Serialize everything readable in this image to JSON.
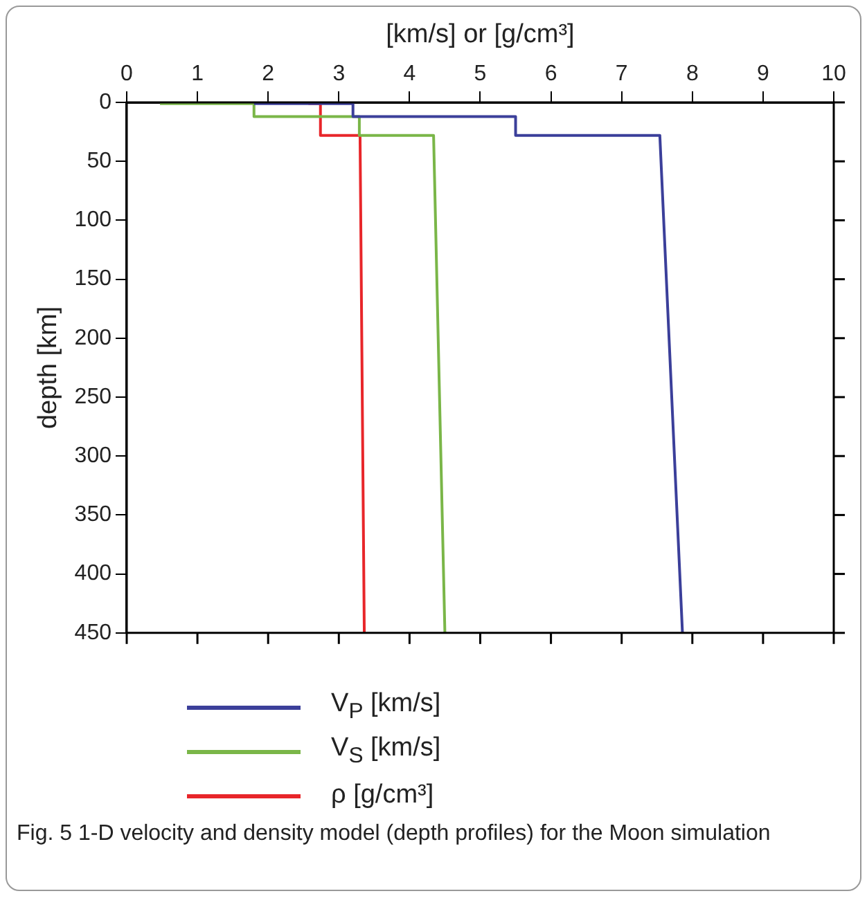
{
  "chart_data": {
    "type": "line",
    "xlabel": "[km/s] or [g/cm³]",
    "ylabel": "depth [km]",
    "xlim": [
      0,
      10
    ],
    "xticks": [
      0,
      1,
      2,
      3,
      4,
      5,
      6,
      7,
      8,
      9,
      10
    ],
    "ylim": [
      450,
      0
    ],
    "yticks": [
      0,
      50,
      100,
      150,
      200,
      250,
      300,
      350,
      400,
      450
    ],
    "grid": false,
    "legend": "bottom",
    "marker": "none",
    "series": [
      {
        "name": "V$_{P}$ [km/s]",
        "color": "#3b3f9a",
        "x": [
          1.8,
          3.2,
          3.2,
          5.5,
          5.5,
          7.54,
          7.86
        ],
        "values": [
          1,
          1,
          12,
          12,
          28,
          28,
          450
        ]
      },
      {
        "name": "V$_{S}$ [km/s]",
        "color": "#7ab648",
        "x": [
          0.47,
          1.8,
          1.8,
          3.29,
          3.29,
          4.34,
          4.5
        ],
        "values": [
          1,
          1,
          12,
          12,
          28,
          28,
          450
        ]
      },
      {
        "name": "ρ [g/cm³]",
        "color": "#e8262a",
        "x": [
          2.57,
          2.74,
          2.74,
          3.3,
          3.36
        ],
        "values": [
          1,
          1,
          28,
          28,
          450
        ]
      }
    ],
    "annotations": [
      "Fig. 5 1-D velocity and density model (depth profiles) for the Moon simulation"
    ]
  }
}
